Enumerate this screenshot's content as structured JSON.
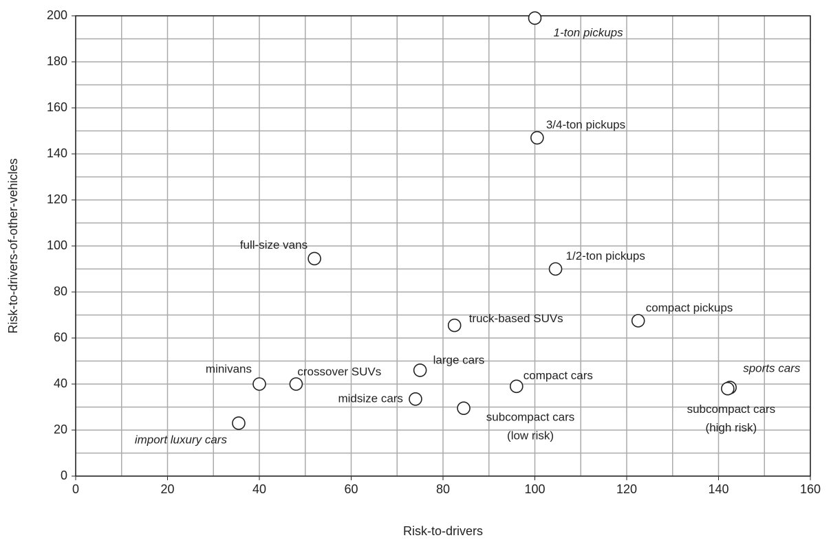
{
  "chart_data": {
    "type": "scatter",
    "xlabel": "Risk-to-drivers",
    "ylabel": "Risk-to-drivers-of-other-vehicles",
    "labels": [
      [
        "1-ton pickups"
      ],
      [
        "3/4-ton pickups"
      ],
      [
        "full-size vans"
      ],
      [
        "1/2-ton pickups"
      ],
      [
        "truck-based SUVs"
      ],
      [
        "compact pickups"
      ],
      [
        "minivans"
      ],
      [
        "crossover SUVs"
      ],
      [
        "large cars"
      ],
      [
        "compact cars"
      ],
      [
        "sports cars"
      ],
      [
        "subcompact cars",
        "(high risk)"
      ],
      [
        "midsize cars"
      ],
      [
        "subcompact cars",
        "(low risk)"
      ],
      [
        "import luxury cars"
      ]
    ],
    "x": [
      100,
      100.5,
      52,
      104.5,
      82.5,
      122.5,
      40,
      48,
      75,
      96,
      142.5,
      142,
      74,
      84.5,
      35.5
    ],
    "values": [
      199,
      147,
      94.5,
      90,
      65.5,
      67.5,
      40,
      40,
      46,
      39,
      38.5,
      38,
      33.5,
      29.5,
      23
    ],
    "marker_color": "#ffffff",
    "xlim": [
      0,
      160
    ],
    "ylim": [
      0,
      200
    ],
    "xticks": [
      0,
      20,
      40,
      60,
      80,
      100,
      120,
      140,
      160
    ],
    "yticks": [
      0,
      20,
      40,
      60,
      80,
      100,
      120,
      140,
      160,
      180,
      200
    ],
    "x_minor_ticks": [
      10,
      30,
      50,
      70,
      90,
      110,
      130,
      150
    ],
    "y_minor_ticks": [
      10,
      30,
      50,
      70,
      90,
      110,
      130,
      150,
      170,
      190
    ],
    "grid": true
  }
}
